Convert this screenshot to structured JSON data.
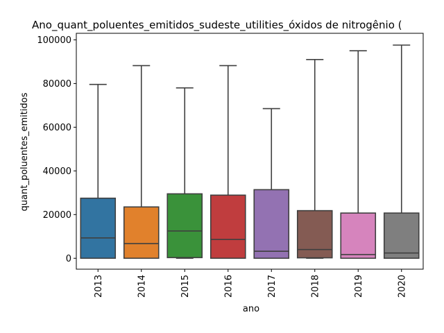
{
  "chart_data": {
    "type": "box",
    "title": "Ano_quant_poluentes_emitidos_sudeste_utilities_óxidos de nitrogênio (",
    "xlabel": "ano",
    "ylabel": "quant_poluentes_emitidos",
    "ylim": [
      -5000,
      103000
    ],
    "yticks": [
      0,
      20000,
      40000,
      60000,
      80000,
      100000
    ],
    "ytick_labels": [
      "0",
      "20000",
      "40000",
      "60000",
      "80000",
      "100000"
    ],
    "categories": [
      "2013",
      "2014",
      "2015",
      "2016",
      "2017",
      "2018",
      "2019",
      "2020"
    ],
    "boxes": [
      {
        "category": "2013",
        "whislo": 0,
        "q1": 0,
        "median": 9300,
        "q3": 27500,
        "whishi": 79600,
        "color": "#3274a1"
      },
      {
        "category": "2014",
        "whislo": 0,
        "q1": 0,
        "median": 6700,
        "q3": 23500,
        "whishi": 88200,
        "color": "#e1812c"
      },
      {
        "category": "2015",
        "whislo": 0,
        "q1": 300,
        "median": 12500,
        "q3": 29500,
        "whishi": 78000,
        "color": "#3a923a"
      },
      {
        "category": "2016",
        "whislo": 0,
        "q1": 0,
        "median": 8600,
        "q3": 28900,
        "whishi": 88200,
        "color": "#c03d3e"
      },
      {
        "category": "2017",
        "whislo": 0,
        "q1": 0,
        "median": 3200,
        "q3": 31400,
        "whishi": 68500,
        "color": "#9372b2"
      },
      {
        "category": "2018",
        "whislo": 0,
        "q1": 200,
        "median": 4000,
        "q3": 21800,
        "whishi": 91000,
        "color": "#845b53"
      },
      {
        "category": "2019",
        "whislo": 0,
        "q1": 0,
        "median": 1700,
        "q3": 20700,
        "whishi": 95000,
        "color": "#d684bd"
      },
      {
        "category": "2020",
        "whislo": 0,
        "q1": 0,
        "median": 2400,
        "q3": 20700,
        "whishi": 97600,
        "color": "#7f7f7f"
      }
    ],
    "grid": false,
    "legend": "none"
  }
}
